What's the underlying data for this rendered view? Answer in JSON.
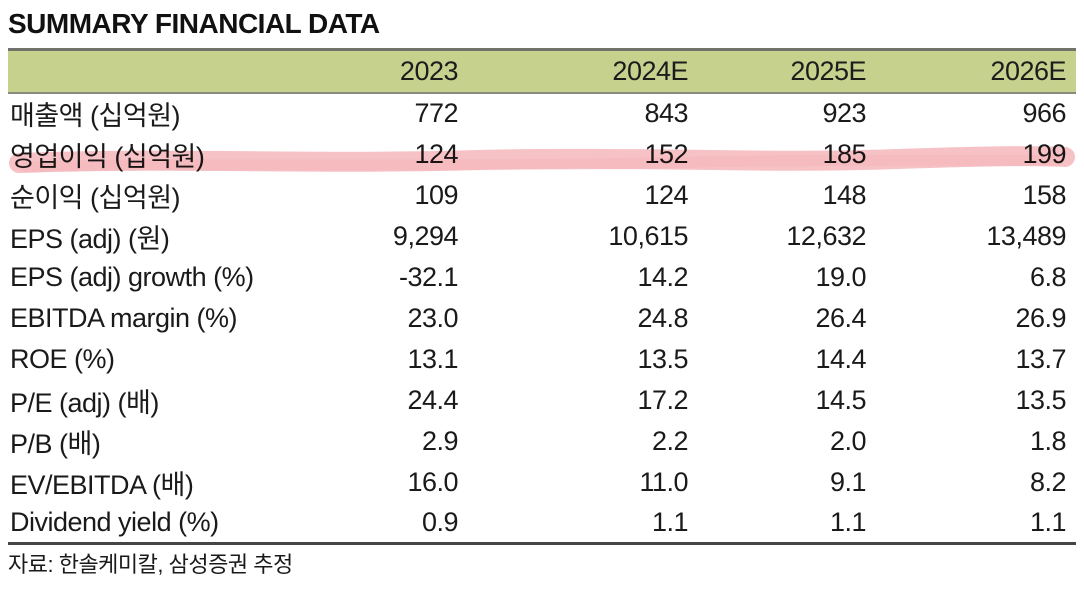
{
  "title": "SUMMARY FINANCIAL DATA",
  "table": {
    "columns": [
      "",
      "2023",
      "2024E",
      "2025E",
      "2026E"
    ],
    "rows": [
      {
        "label": "매출액 (십억원)",
        "values": [
          "772",
          "843",
          "923",
          "966"
        ],
        "highlighted": false
      },
      {
        "label": "영업이익 (십억원)",
        "values": [
          "124",
          "152",
          "185",
          "199"
        ],
        "highlighted": true
      },
      {
        "label": "순이익 (십억원)",
        "values": [
          "109",
          "124",
          "148",
          "158"
        ],
        "highlighted": false
      },
      {
        "label": "EPS (adj) (원)",
        "values": [
          "9,294",
          "10,615",
          "12,632",
          "13,489"
        ],
        "highlighted": false
      },
      {
        "label": "EPS (adj) growth (%)",
        "values": [
          "-32.1",
          "14.2",
          "19.0",
          "6.8"
        ],
        "highlighted": false
      },
      {
        "label": "EBITDA margin (%)",
        "values": [
          "23.0",
          "24.8",
          "26.4",
          "26.9"
        ],
        "highlighted": false
      },
      {
        "label": "ROE (%)",
        "values": [
          "13.1",
          "13.5",
          "14.4",
          "13.7"
        ],
        "highlighted": false
      },
      {
        "label": "P/E (adj) (배)",
        "values": [
          "24.4",
          "17.2",
          "14.5",
          "13.5"
        ],
        "highlighted": false
      },
      {
        "label": "P/B (배)",
        "values": [
          "2.9",
          "2.2",
          "2.0",
          "1.8"
        ],
        "highlighted": false
      },
      {
        "label": "EV/EBITDA (배)",
        "values": [
          "16.0",
          "11.0",
          "9.1",
          "8.2"
        ],
        "highlighted": false
      },
      {
        "label": "Dividend yield (%)",
        "values": [
          "0.9",
          "1.1",
          "1.1",
          "1.1"
        ],
        "highlighted": false
      }
    ]
  },
  "footer": {
    "source": "자료: 한솔케미칼, 삼성증권 추정"
  },
  "colors": {
    "header_bg": "#c7d18e",
    "highlight_marker": "#f3aab0",
    "border_top": "#72726a",
    "border_bottom": "#454545",
    "header_divider": "#8a8a7e",
    "text": "#1a1a1a"
  }
}
